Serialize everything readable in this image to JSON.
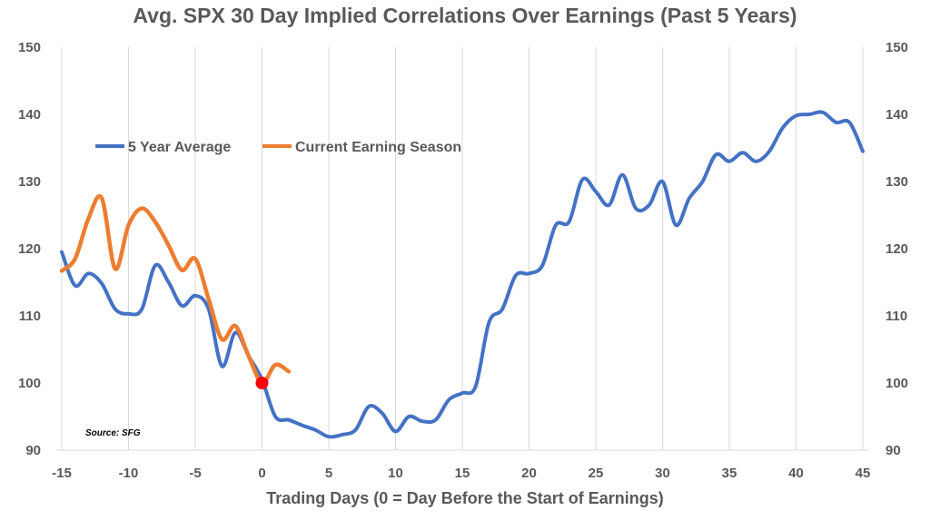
{
  "chart_data": {
    "type": "line",
    "title": "Avg. SPX 30 Day Implied Correlations Over Earnings (Past 5 Years)",
    "xlabel": "Trading Days (0 = Day Before the Start of Earnings)",
    "ylabel": "",
    "xlim": [
      -15,
      45
    ],
    "ylim": [
      90,
      150
    ],
    "x_ticks": [
      -15,
      -10,
      -5,
      0,
      5,
      10,
      15,
      20,
      25,
      30,
      35,
      40,
      45
    ],
    "y_ticks": [
      90,
      100,
      110,
      120,
      130,
      140,
      150
    ],
    "grid": "vertical",
    "legend_position": "top-left",
    "source_note": "Source: SFG",
    "colors": {
      "avg": "#4472c4",
      "current": "#ed7d31",
      "marker": "#ff0000",
      "grid": "#d9d9d9",
      "text": "#595959"
    },
    "series": [
      {
        "name": "5 Year Average",
        "color": "#4472c4",
        "x": [
          -15,
          -14,
          -13,
          -12,
          -11,
          -10,
          -9,
          -8,
          -7,
          -6,
          -5,
          -4,
          -3,
          -2,
          -1,
          0,
          1,
          2,
          3,
          4,
          5,
          6,
          7,
          8,
          9,
          10,
          11,
          12,
          13,
          14,
          15,
          16,
          17,
          18,
          19,
          20,
          21,
          22,
          23,
          24,
          25,
          26,
          27,
          28,
          29,
          30,
          31,
          32,
          33,
          34,
          35,
          36,
          37,
          38,
          39,
          40,
          41,
          42,
          43,
          44,
          45
        ],
        "values": [
          119.5,
          114.5,
          116.3,
          114.8,
          111.0,
          110.3,
          111.0,
          117.5,
          115.0,
          111.5,
          113.0,
          111.0,
          102.5,
          107.5,
          104.0,
          100.5,
          95.0,
          94.5,
          93.7,
          93.0,
          92.0,
          92.3,
          93.0,
          96.5,
          95.5,
          92.8,
          95.0,
          94.3,
          94.5,
          97.5,
          98.5,
          99.5,
          109.0,
          111.0,
          116.0,
          116.3,
          117.5,
          123.5,
          124.0,
          130.3,
          128.5,
          126.5,
          131.0,
          126.0,
          126.5,
          130.0,
          123.5,
          127.5,
          130.0,
          134.0,
          133.0,
          134.3,
          133.0,
          134.5,
          138.0,
          139.8,
          140.0,
          140.3,
          138.8,
          138.8,
          134.5
        ]
      },
      {
        "name": "Current Earning Season",
        "color": "#ed7d31",
        "x": [
          -15,
          -14,
          -13,
          -12,
          -11,
          -10,
          -9,
          -8,
          -7,
          -6,
          -5,
          -4,
          -3,
          -2,
          -1,
          0,
          1,
          2
        ],
        "values": [
          116.7,
          118.5,
          124.5,
          127.5,
          117.0,
          123.5,
          126.0,
          124.0,
          120.5,
          116.8,
          118.5,
          112.5,
          106.5,
          108.5,
          104.0,
          100.0,
          102.7,
          101.7
        ]
      }
    ],
    "highlight_point": {
      "x": 0,
      "y": 100
    }
  }
}
